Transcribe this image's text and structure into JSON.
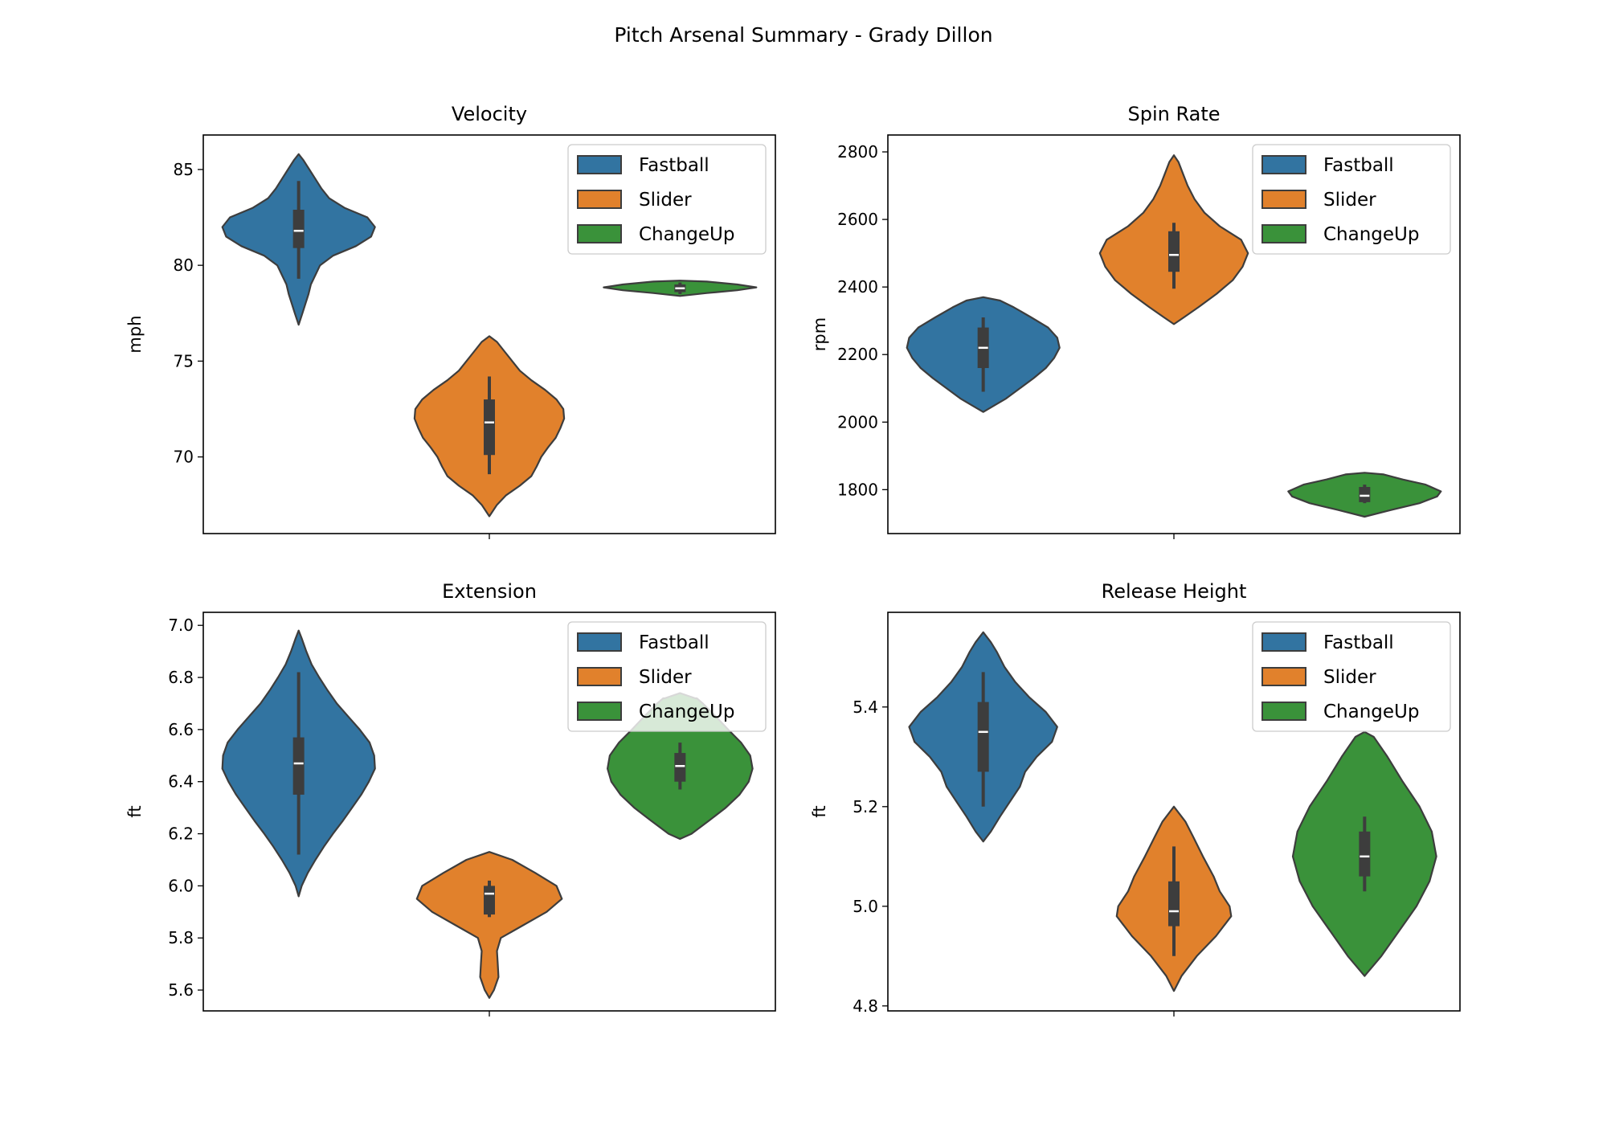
{
  "suptitle": "Pitch Arsenal Summary - Grady Dillon",
  "pitch_colors": {
    "Fastball": "#3274a1",
    "Slider": "#e1812c",
    "ChangeUp": "#3a923a"
  },
  "outline_color": "#3d3d3d",
  "chart_data": [
    {
      "type": "violin",
      "title": "Velocity",
      "xlabel": "",
      "ylabel": "mph",
      "ylim": [
        66.0,
        86.8
      ],
      "yticks": [
        70,
        75,
        80,
        85
      ],
      "tick_format": "int",
      "legend": {
        "placement": "top-right",
        "entries": [
          "Fastball",
          "Slider",
          "ChangeUp"
        ]
      },
      "series": [
        {
          "name": "Fastball",
          "pos": 0,
          "profile": [
            [
              76.9,
              0
            ],
            [
              77.5,
              0.05
            ],
            [
              78.0,
              0.09
            ],
            [
              78.5,
              0.13
            ],
            [
              79.0,
              0.16
            ],
            [
              79.5,
              0.22
            ],
            [
              80.0,
              0.28
            ],
            [
              80.5,
              0.45
            ],
            [
              81.0,
              0.75
            ],
            [
              81.5,
              0.95
            ],
            [
              82.0,
              1.0
            ],
            [
              82.5,
              0.9
            ],
            [
              83.0,
              0.6
            ],
            [
              83.5,
              0.4
            ],
            [
              84.0,
              0.3
            ],
            [
              84.5,
              0.22
            ],
            [
              85.0,
              0.14
            ],
            [
              85.5,
              0.06
            ],
            [
              85.8,
              0
            ]
          ],
          "whisker": [
            79.3,
            84.4
          ],
          "q1": 80.9,
          "q3": 82.9,
          "median": 81.8
        },
        {
          "name": "Slider",
          "pos": 1,
          "profile": [
            [
              66.9,
              0
            ],
            [
              67.5,
              0.1
            ],
            [
              68.0,
              0.22
            ],
            [
              68.5,
              0.4
            ],
            [
              69.0,
              0.55
            ],
            [
              69.5,
              0.62
            ],
            [
              70.0,
              0.68
            ],
            [
              70.5,
              0.77
            ],
            [
              71.0,
              0.87
            ],
            [
              71.5,
              0.93
            ],
            [
              72.0,
              0.98
            ],
            [
              72.5,
              0.97
            ],
            [
              73.0,
              0.88
            ],
            [
              73.5,
              0.73
            ],
            [
              74.0,
              0.55
            ],
            [
              74.5,
              0.4
            ],
            [
              75.0,
              0.3
            ],
            [
              75.5,
              0.2
            ],
            [
              76.0,
              0.1
            ],
            [
              76.3,
              0
            ]
          ],
          "whisker": [
            69.1,
            74.2
          ],
          "q1": 70.1,
          "q3": 73.0,
          "median": 71.8
        },
        {
          "name": "ChangeUp",
          "pos": 2,
          "profile": [
            [
              78.4,
              0
            ],
            [
              78.55,
              0.35
            ],
            [
              78.7,
              0.75
            ],
            [
              78.85,
              1.0
            ],
            [
              79.0,
              0.75
            ],
            [
              79.15,
              0.35
            ],
            [
              79.2,
              0
            ]
          ],
          "whisker": [
            78.5,
            79.1
          ],
          "q1": 78.6,
          "q3": 79.0,
          "median": 78.8
        }
      ]
    },
    {
      "type": "violin",
      "title": "Spin Rate",
      "xlabel": "",
      "ylabel": "rpm",
      "ylim": [
        1670,
        2850
      ],
      "yticks": [
        1800,
        2000,
        2200,
        2400,
        2600,
        2800
      ],
      "tick_format": "int",
      "legend": {
        "placement": "top-right",
        "entries": [
          "Fastball",
          "Slider",
          "ChangeUp"
        ]
      },
      "series": [
        {
          "name": "Fastball",
          "pos": 0,
          "profile": [
            [
              2030,
              0
            ],
            [
              2050,
              0.15
            ],
            [
              2070,
              0.3
            ],
            [
              2100,
              0.48
            ],
            [
              2130,
              0.66
            ],
            [
              2160,
              0.82
            ],
            [
              2190,
              0.93
            ],
            [
              2220,
              1.0
            ],
            [
              2250,
              0.97
            ],
            [
              2280,
              0.85
            ],
            [
              2310,
              0.63
            ],
            [
              2340,
              0.4
            ],
            [
              2360,
              0.22
            ],
            [
              2370,
              0
            ]
          ],
          "whisker": [
            2090,
            2310
          ],
          "q1": 2160,
          "q3": 2280,
          "median": 2220
        },
        {
          "name": "Slider",
          "pos": 1,
          "profile": [
            [
              2290,
              0
            ],
            [
              2310,
              0.13
            ],
            [
              2340,
              0.32
            ],
            [
              2380,
              0.56
            ],
            [
              2420,
              0.77
            ],
            [
              2460,
              0.9
            ],
            [
              2500,
              0.97
            ],
            [
              2540,
              0.88
            ],
            [
              2580,
              0.6
            ],
            [
              2620,
              0.4
            ],
            [
              2660,
              0.27
            ],
            [
              2700,
              0.18
            ],
            [
              2740,
              0.11
            ],
            [
              2770,
              0.06
            ],
            [
              2790,
              0
            ]
          ],
          "whisker": [
            2395,
            2590
          ],
          "q1": 2445,
          "q3": 2565,
          "median": 2495
        },
        {
          "name": "ChangeUp",
          "pos": 2,
          "profile": [
            [
              1720,
              0
            ],
            [
              1740,
              0.35
            ],
            [
              1760,
              0.72
            ],
            [
              1780,
              0.95
            ],
            [
              1795,
              1.0
            ],
            [
              1815,
              0.8
            ],
            [
              1830,
              0.5
            ],
            [
              1845,
              0.25
            ],
            [
              1850,
              0
            ]
          ],
          "whisker": [
            1760,
            1815
          ],
          "q1": 1763,
          "q3": 1808,
          "median": 1782
        }
      ]
    },
    {
      "type": "violin",
      "title": "Extension",
      "xlabel": "",
      "ylabel": "ft",
      "ylim": [
        5.52,
        7.05
      ],
      "yticks": [
        5.6,
        5.8,
        6.0,
        6.2,
        6.4,
        6.6,
        6.8,
        7.0
      ],
      "tick_format": "1f",
      "legend": {
        "placement": "top-right",
        "entries": [
          "Fastball",
          "Slider",
          "ChangeUp"
        ]
      },
      "series": [
        {
          "name": "Fastball",
          "pos": 0,
          "profile": [
            [
              5.96,
              0
            ],
            [
              6.0,
              0.04
            ],
            [
              6.05,
              0.12
            ],
            [
              6.1,
              0.22
            ],
            [
              6.15,
              0.33
            ],
            [
              6.2,
              0.45
            ],
            [
              6.25,
              0.58
            ],
            [
              6.3,
              0.7
            ],
            [
              6.35,
              0.82
            ],
            [
              6.4,
              0.92
            ],
            [
              6.45,
              1.0
            ],
            [
              6.5,
              0.99
            ],
            [
              6.55,
              0.93
            ],
            [
              6.6,
              0.8
            ],
            [
              6.65,
              0.65
            ],
            [
              6.7,
              0.5
            ],
            [
              6.75,
              0.38
            ],
            [
              6.8,
              0.27
            ],
            [
              6.85,
              0.17
            ],
            [
              6.9,
              0.1
            ],
            [
              6.95,
              0.04
            ],
            [
              6.98,
              0
            ]
          ],
          "whisker": [
            6.12,
            6.82
          ],
          "q1": 6.35,
          "q3": 6.57,
          "median": 6.47
        },
        {
          "name": "Slider",
          "pos": 1,
          "profile": [
            [
              5.57,
              0
            ],
            [
              5.6,
              0.06
            ],
            [
              5.65,
              0.12
            ],
            [
              5.7,
              0.11
            ],
            [
              5.75,
              0.1
            ],
            [
              5.8,
              0.15
            ],
            [
              5.85,
              0.45
            ],
            [
              5.9,
              0.75
            ],
            [
              5.95,
              0.95
            ],
            [
              6.0,
              0.88
            ],
            [
              6.05,
              0.6
            ],
            [
              6.1,
              0.3
            ],
            [
              6.13,
              0
            ]
          ],
          "whisker": [
            5.88,
            6.02
          ],
          "q1": 5.89,
          "q3": 6.0,
          "median": 5.97
        },
        {
          "name": "ChangeUp",
          "pos": 2,
          "profile": [
            [
              6.18,
              0
            ],
            [
              6.2,
              0.15
            ],
            [
              6.25,
              0.38
            ],
            [
              6.3,
              0.6
            ],
            [
              6.35,
              0.78
            ],
            [
              6.4,
              0.9
            ],
            [
              6.45,
              0.95
            ],
            [
              6.5,
              0.92
            ],
            [
              6.55,
              0.8
            ],
            [
              6.6,
              0.63
            ],
            [
              6.65,
              0.47
            ],
            [
              6.7,
              0.3
            ],
            [
              6.72,
              0.22
            ],
            [
              6.72,
              0.2
            ],
            [
              6.74,
              0
            ]
          ],
          "whisker": [
            6.37,
            6.55
          ],
          "q1": 6.4,
          "q3": 6.51,
          "median": 6.46
        }
      ]
    },
    {
      "type": "violin",
      "title": "Release Height",
      "xlabel": "",
      "ylabel": "ft",
      "ylim": [
        4.79,
        5.59
      ],
      "yticks": [
        4.8,
        5.0,
        5.2,
        5.4
      ],
      "tick_format": "1f",
      "legend": {
        "placement": "top-right",
        "entries": [
          "Fastball",
          "Slider",
          "ChangeUp"
        ]
      },
      "series": [
        {
          "name": "Fastball",
          "pos": 0,
          "profile": [
            [
              5.13,
              0
            ],
            [
              5.15,
              0.1
            ],
            [
              5.18,
              0.22
            ],
            [
              5.21,
              0.35
            ],
            [
              5.24,
              0.48
            ],
            [
              5.27,
              0.55
            ],
            [
              5.3,
              0.7
            ],
            [
              5.33,
              0.9
            ],
            [
              5.36,
              0.97
            ],
            [
              5.39,
              0.82
            ],
            [
              5.42,
              0.6
            ],
            [
              5.45,
              0.42
            ],
            [
              5.48,
              0.28
            ],
            [
              5.51,
              0.18
            ],
            [
              5.53,
              0.1
            ],
            [
              5.55,
              0
            ]
          ],
          "whisker": [
            5.2,
            5.47
          ],
          "q1": 5.27,
          "q3": 5.41,
          "median": 5.35
        },
        {
          "name": "Slider",
          "pos": 1,
          "profile": [
            [
              4.83,
              0
            ],
            [
              4.86,
              0.1
            ],
            [
              4.9,
              0.3
            ],
            [
              4.94,
              0.55
            ],
            [
              4.98,
              0.75
            ],
            [
              5.0,
              0.73
            ],
            [
              5.03,
              0.6
            ],
            [
              5.06,
              0.52
            ],
            [
              5.1,
              0.38
            ],
            [
              5.14,
              0.25
            ],
            [
              5.17,
              0.15
            ],
            [
              5.2,
              0
            ]
          ],
          "whisker": [
            4.9,
            5.12
          ],
          "q1": 4.96,
          "q3": 5.05,
          "median": 4.99
        },
        {
          "name": "ChangeUp",
          "pos": 2,
          "profile": [
            [
              4.86,
              0
            ],
            [
              4.9,
              0.22
            ],
            [
              4.95,
              0.45
            ],
            [
              5.0,
              0.68
            ],
            [
              5.05,
              0.85
            ],
            [
              5.1,
              0.94
            ],
            [
              5.15,
              0.88
            ],
            [
              5.2,
              0.72
            ],
            [
              5.25,
              0.5
            ],
            [
              5.3,
              0.3
            ],
            [
              5.34,
              0.12
            ],
            [
              5.35,
              0
            ]
          ],
          "whisker": [
            5.03,
            5.18
          ],
          "q1": 5.06,
          "q3": 5.15,
          "median": 5.1
        }
      ]
    }
  ]
}
